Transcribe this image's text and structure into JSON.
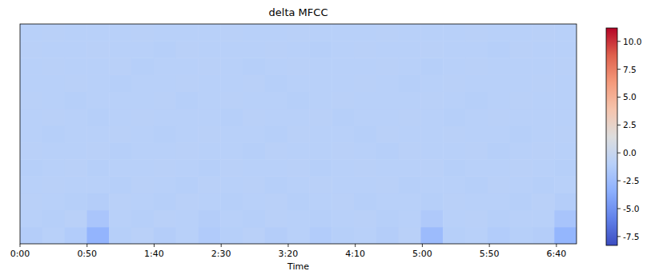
{
  "chart_data": {
    "type": "heatmap",
    "title": "delta MFCC",
    "x_label": "Time",
    "xlim": [
      0,
      415
    ],
    "xticks": [
      {
        "value": 0,
        "label": "0:00"
      },
      {
        "value": 50,
        "label": "0:50"
      },
      {
        "value": 100,
        "label": "1:40"
      },
      {
        "value": 150,
        "label": "2:30"
      },
      {
        "value": 200,
        "label": "3:20"
      },
      {
        "value": 250,
        "label": "4:10"
      },
      {
        "value": 300,
        "label": "5:00"
      },
      {
        "value": 350,
        "label": "5:50"
      },
      {
        "value": 400,
        "label": "6:40"
      }
    ],
    "tick_labels": "x",
    "cells": [
      [
        -1.2,
        -1.0,
        -1.3,
        -3.1,
        -1.1,
        -0.9,
        -1.2,
        -1.0,
        -1.4,
        -1.1,
        -0.9,
        -1.2,
        -1.0,
        -1.3,
        -1.1,
        -1.0,
        -1.2,
        -0.9,
        -2.6,
        -1.1,
        -1.0,
        -1.3,
        -1.1,
        -1.2,
        -3.0
      ],
      [
        -1.0,
        -1.1,
        -0.9,
        -1.8,
        -1.0,
        -1.1,
        -0.9,
        -1.0,
        -1.2,
        -1.0,
        -1.1,
        -0.9,
        -1.0,
        -1.1,
        -1.0,
        -0.9,
        -1.1,
        -1.0,
        -1.5,
        -1.0,
        -0.9,
        -1.1,
        -1.0,
        -1.0,
        -1.9
      ],
      [
        -0.9,
        -1.0,
        -1.1,
        -1.2,
        -0.9,
        -1.0,
        -1.1,
        -0.9,
        -1.0,
        -1.1,
        -1.0,
        -0.9,
        -1.1,
        -1.0,
        -0.9,
        -1.1,
        -1.0,
        -1.0,
        -1.1,
        -0.9,
        -1.0,
        -1.0,
        -1.1,
        -0.9,
        -1.2
      ],
      [
        -1.0,
        -0.9,
        -1.0,
        -1.0,
        -1.1,
        -0.9,
        -1.0,
        -1.1,
        -0.9,
        -1.0,
        -0.9,
        -1.1,
        -1.0,
        -0.9,
        -1.0,
        -1.0,
        -0.9,
        -1.1,
        -1.0,
        -1.0,
        -1.1,
        -0.9,
        -1.0,
        -1.1,
        -1.0
      ],
      [
        -1.1,
        -1.0,
        -0.9,
        -1.1,
        -1.0,
        -1.0,
        -0.9,
        -1.0,
        -1.1,
        -0.9,
        -1.0,
        -1.0,
        -0.9,
        -1.1,
        -1.0,
        -0.9,
        -1.0,
        -1.0,
        -0.9,
        -1.1,
        -1.0,
        -1.0,
        -0.9,
        -1.0,
        -1.1
      ],
      [
        -0.9,
        -1.0,
        -1.0,
        -0.9,
        -1.1,
        -1.0,
        -1.0,
        -0.9,
        -1.0,
        -1.0,
        -1.1,
        -0.9,
        -1.0,
        -1.0,
        -0.9,
        -1.0,
        -1.1,
        -0.9,
        -1.0,
        -1.0,
        -0.9,
        -1.1,
        -1.0,
        -0.9,
        -1.0
      ],
      [
        -1.0,
        -1.1,
        -1.0,
        -1.0,
        -0.9,
        -1.0,
        -1.1,
        -1.0,
        -0.9,
        -1.0,
        -1.0,
        -1.1,
        -0.9,
        -1.0,
        -1.0,
        -1.1,
        -0.9,
        -1.0,
        -1.0,
        -0.9,
        -1.0,
        -1.0,
        -1.1,
        -1.0,
        -0.9
      ],
      [
        -1.0,
        -0.9,
        -1.0,
        -1.1,
        -1.0,
        -0.9,
        -1.0,
        -1.0,
        -1.0,
        -1.1,
        -0.9,
        -1.0,
        -1.0,
        -0.9,
        -1.1,
        -1.0,
        -1.0,
        -0.9,
        -1.0,
        -1.1,
        -1.0,
        -0.9,
        -1.0,
        -1.0,
        -1.0
      ],
      [
        -0.9,
        -1.0,
        -1.1,
        -1.0,
        -1.0,
        -1.0,
        -0.9,
        -1.1,
        -1.0,
        -0.9,
        -1.0,
        -1.0,
        -1.1,
        -1.0,
        -0.9,
        -1.0,
        -1.0,
        -1.0,
        -0.9,
        -1.0,
        -1.1,
        -1.0,
        -0.9,
        -1.0,
        -1.0
      ],
      [
        -1.0,
        -1.0,
        -0.9,
        -1.0,
        -1.1,
        -1.0,
        -1.0,
        -0.9,
        -1.0,
        -1.0,
        -0.9,
        -1.1,
        -1.0,
        -1.0,
        -1.0,
        -0.9,
        -1.0,
        -1.1,
        -1.0,
        -0.9,
        -1.0,
        -1.0,
        -1.0,
        -0.9,
        -1.0
      ],
      [
        -1.0,
        -0.9,
        -1.0,
        -1.0,
        -0.9,
        -1.1,
        -1.0,
        -1.0,
        -0.9,
        -1.0,
        -1.1,
        -1.0,
        -0.9,
        -1.0,
        -1.0,
        -1.0,
        -0.9,
        -1.0,
        -1.1,
        -1.0,
        -0.9,
        -1.0,
        -1.0,
        -1.0,
        -0.9
      ],
      [
        -0.9,
        -1.0,
        -1.0,
        -0.9,
        -1.0,
        -1.0,
        -1.1,
        -0.9,
        -1.0,
        -1.0,
        -1.0,
        -0.9,
        -1.0,
        -1.1,
        -1.0,
        -0.9,
        -1.0,
        -1.0,
        -0.9,
        -1.0,
        -1.0,
        -1.1,
        -0.9,
        -1.0,
        -1.0
      ],
      [
        -1.0,
        -0.9,
        -1.0,
        -1.0,
        -1.0,
        -0.9,
        -1.0,
        -1.0,
        -1.0,
        -0.9,
        -1.0,
        -1.0,
        -0.9,
        -1.0,
        -1.0,
        -1.0,
        -0.9,
        -1.0,
        -1.0,
        -1.0,
        -0.9,
        -1.0,
        -1.0,
        -0.9,
        -1.0
      ]
    ],
    "colorbar_range": [
      -8.3,
      11.2
    ],
    "colorbar_ticks": [
      {
        "value": 10,
        "label": "10.0"
      },
      7.5,
      {
        "value": 5,
        "label": "5.0"
      },
      2.5,
      {
        "value": 0,
        "label": "0.0"
      },
      -2.5,
      {
        "value": -5,
        "label": "-5.0"
      },
      -7.5
    ]
  }
}
